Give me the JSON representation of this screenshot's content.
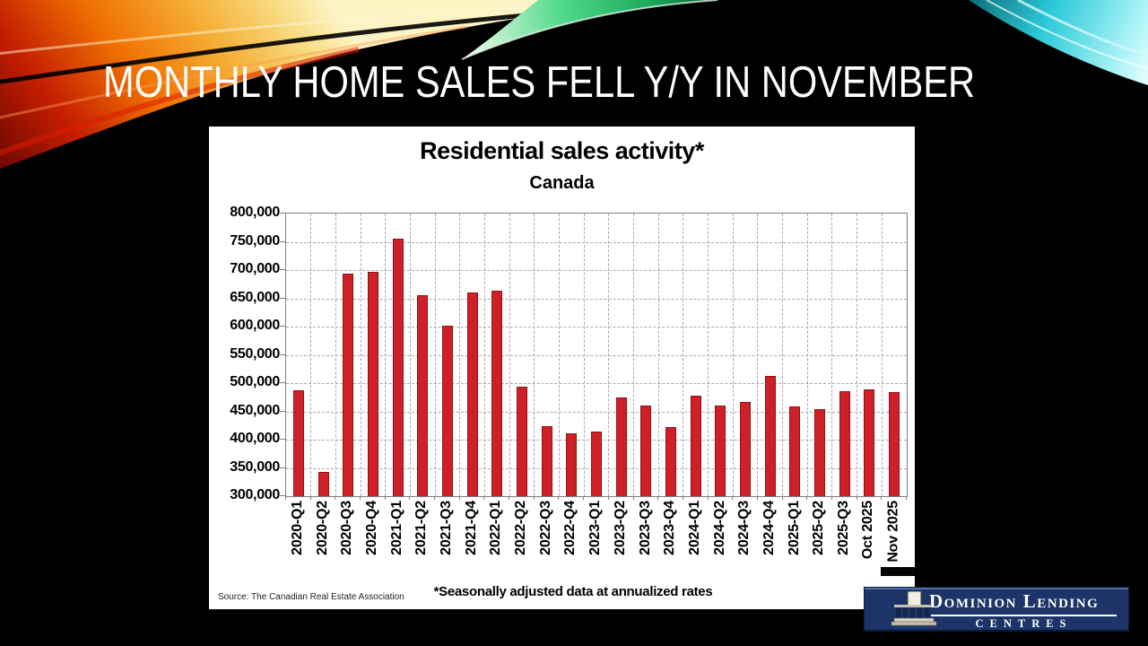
{
  "slide": {
    "title": "MONTHLY HOME SALES FELL Y/Y IN NOVEMBER"
  },
  "chart": {
    "title": "Residential sales activity*",
    "subtitle": "Canada",
    "source": "Source: The Canadian Real Estate Association",
    "footnote": "*Seasonally adjusted data at annualized rates"
  },
  "chart_data": {
    "type": "bar",
    "title": "Residential sales activity*",
    "subtitle": "Canada",
    "categories": [
      "2020-Q1",
      "2020-Q2",
      "2020-Q3",
      "2020-Q4",
      "2021-Q1",
      "2021-Q2",
      "2021-Q3",
      "2021-Q4",
      "2022-Q1",
      "2022-Q2",
      "2022-Q3",
      "2022-Q4",
      "2023-Q1",
      "2023-Q2",
      "2023-Q3",
      "2023-Q4",
      "2024-Q1",
      "2024-Q2",
      "2024-Q3",
      "2024-Q4",
      "2025-Q1",
      "2025-Q2",
      "2025-Q3",
      "Oct 2025",
      "Nov 2025"
    ],
    "values": [
      488000,
      343000,
      694000,
      697000,
      756000,
      655000,
      602000,
      660000,
      663000,
      494000,
      424000,
      411000,
      415000,
      475000,
      460000,
      422000,
      478000,
      461000,
      466000,
      512000,
      459000,
      454000,
      486000,
      489000,
      484000
    ],
    "ylim": [
      300000,
      800000
    ],
    "ytick_step": 50000,
    "ytick_format": "comma",
    "xlabel": "",
    "ylabel": "",
    "grid": "dashed horizontal and vertical",
    "legend": "none",
    "bar_color": "#ce2026",
    "bar_border_color": "#8e1418",
    "source": "Source: The Canadian Real Estate Association",
    "footnote": "*Seasonally adjusted data at annualized rates"
  },
  "logo": {
    "line1": "Dominion Lending",
    "line2": "CENTRES",
    "bg_color": "#1c3468"
  },
  "decoration": {
    "swoosh_colors": [
      "#8f0b00",
      "#e84b00",
      "#f59300",
      "#ffd24a",
      "#fff0b0",
      "#2fca7a",
      "#2cc9d8"
    ]
  }
}
